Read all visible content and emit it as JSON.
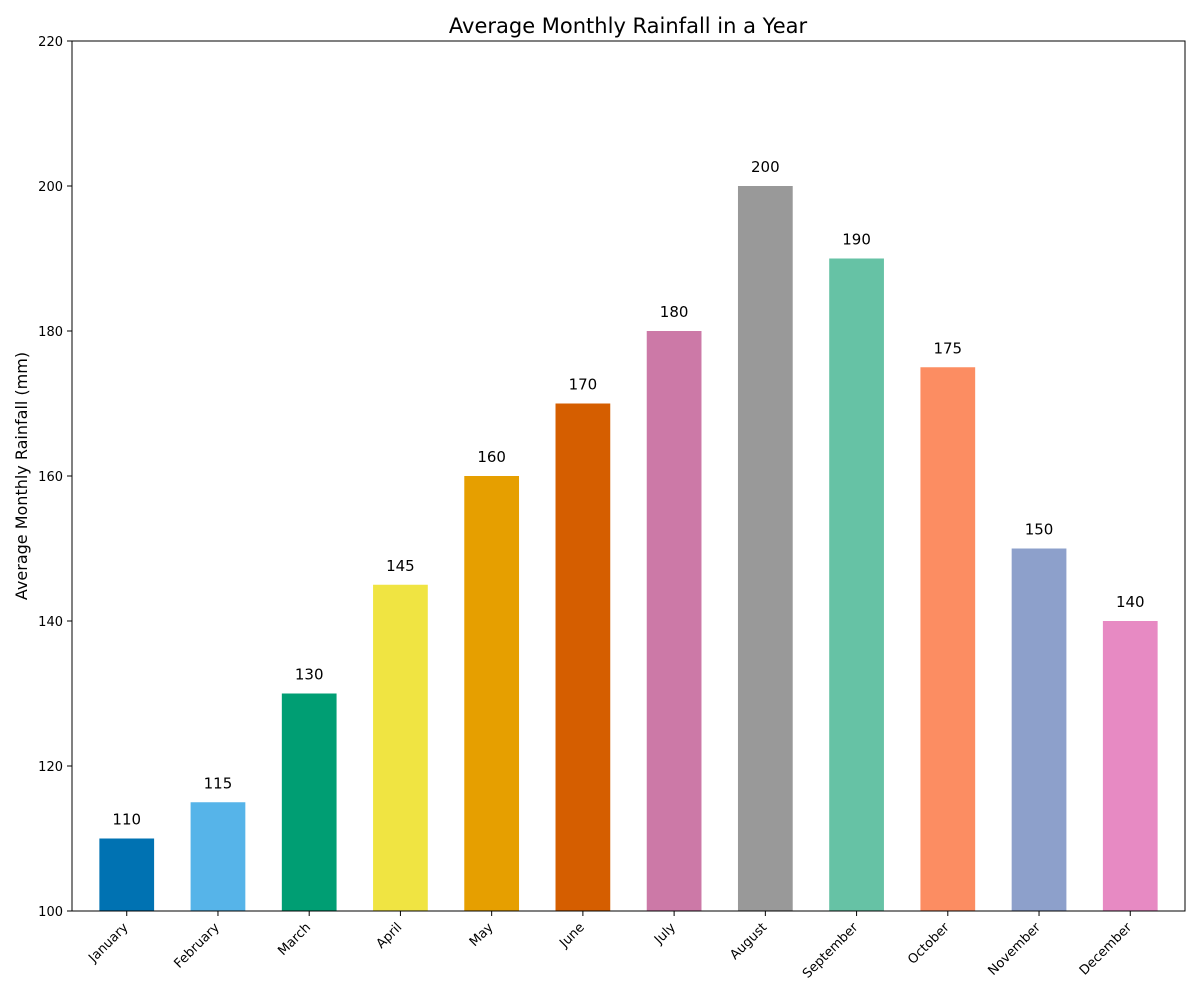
{
  "chart_data": {
    "type": "bar",
    "title": "Average Monthly Rainfall in a Year",
    "xlabel": "",
    "ylabel": "Average Monthly Rainfall (mm)",
    "ylim": [
      100,
      220
    ],
    "yticks": [
      100,
      120,
      140,
      160,
      180,
      200,
      220
    ],
    "categories": [
      "January",
      "February",
      "March",
      "April",
      "May",
      "June",
      "July",
      "August",
      "September",
      "October",
      "November",
      "December"
    ],
    "values": [
      110,
      115,
      130,
      145,
      160,
      170,
      180,
      200,
      190,
      175,
      150,
      140
    ],
    "colors": [
      "#0072b2",
      "#56b4e9",
      "#009e73",
      "#f0e442",
      "#e69f00",
      "#d55e00",
      "#cc79a7",
      "#999999",
      "#66c2a5",
      "#fc8d62",
      "#8da0cb",
      "#e78ac3"
    ],
    "grid": false,
    "legend": "none"
  }
}
